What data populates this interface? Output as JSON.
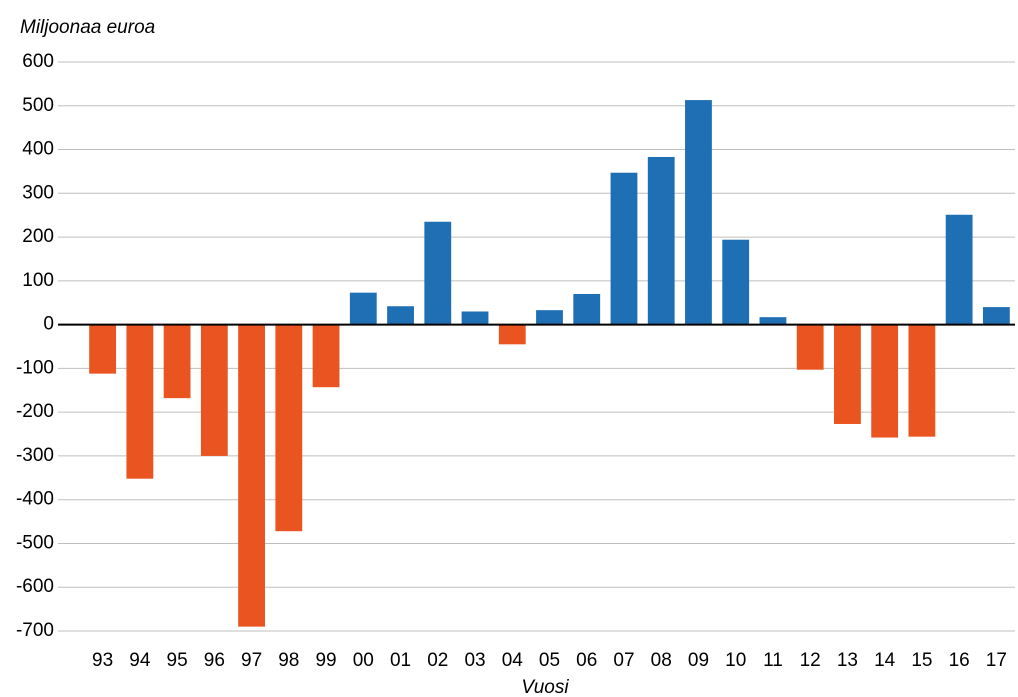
{
  "chart_data": {
    "type": "bar",
    "y_label": "Miljoonaa euroa",
    "x_label": "Vuosi",
    "categories": [
      "93",
      "94",
      "95",
      "96",
      "97",
      "98",
      "99",
      "00",
      "01",
      "02",
      "03",
      "04",
      "05",
      "06",
      "07",
      "08",
      "09",
      "10",
      "11",
      "12",
      "13",
      "14",
      "15",
      "16",
      "17"
    ],
    "values": [
      -112,
      -352,
      -168,
      -300,
      -690,
      -472,
      -143,
      73,
      42,
      235,
      30,
      -45,
      33,
      70,
      347,
      383,
      513,
      194,
      17,
      -103,
      -227,
      -258,
      -256,
      251,
      40
    ],
    "positive_color": "#1f6fb5",
    "negative_color": "#e95420",
    "ylim": [
      -700,
      600
    ],
    "yticks": [
      -700,
      -600,
      -500,
      -400,
      -300,
      -200,
      -100,
      0,
      100,
      200,
      300,
      400,
      500,
      600
    ],
    "grid": true
  }
}
